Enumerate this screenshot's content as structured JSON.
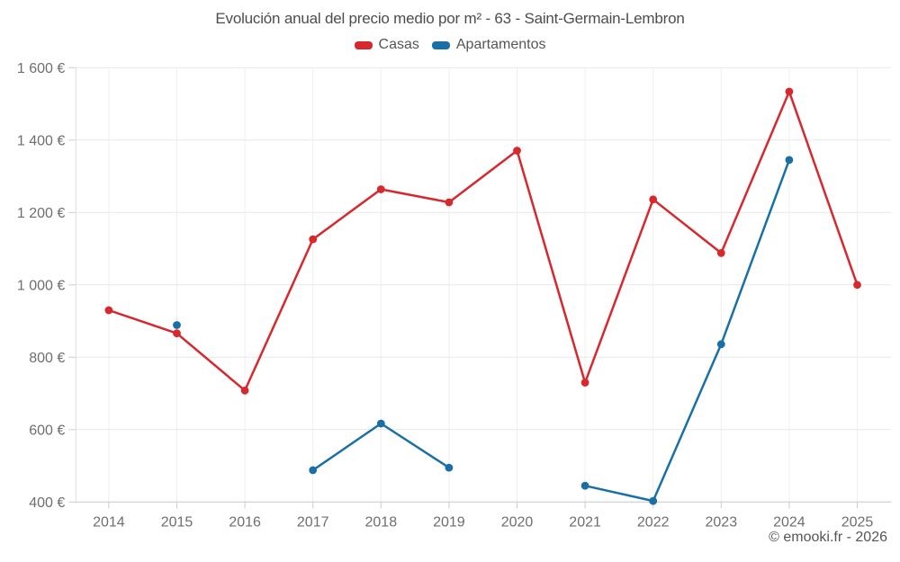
{
  "chart_data": {
    "type": "line",
    "title": "Evolución anual del precio medio por m² - 63 - Saint-Germain-Lembron",
    "x": [
      "2014",
      "2015",
      "2016",
      "2017",
      "2018",
      "2019",
      "2020",
      "2021",
      "2022",
      "2023",
      "2024",
      "2025"
    ],
    "series": [
      {
        "name": "Casas",
        "color": "#d7282e",
        "values": [
          930,
          866,
          708,
          1126,
          1264,
          1228,
          1371,
          730,
          1236,
          1088,
          1534,
          1000
        ]
      },
      {
        "name": "Apartamentos",
        "color": "#1a6fa5",
        "values": [
          null,
          889,
          null,
          488,
          617,
          495,
          null,
          445,
          403,
          836,
          1345,
          null
        ]
      }
    ],
    "ylim": [
      400,
      1600
    ],
    "yticks": [
      400,
      600,
      800,
      1000,
      1200,
      1400,
      1600
    ],
    "ytick_labels": [
      "400 €",
      "600 €",
      "800 €",
      "1 000 €",
      "1 200 €",
      "1 400 €",
      "1 600 €"
    ],
    "grid": true,
    "legend_position": "top",
    "footer": "© emooki.fr - 2026"
  }
}
